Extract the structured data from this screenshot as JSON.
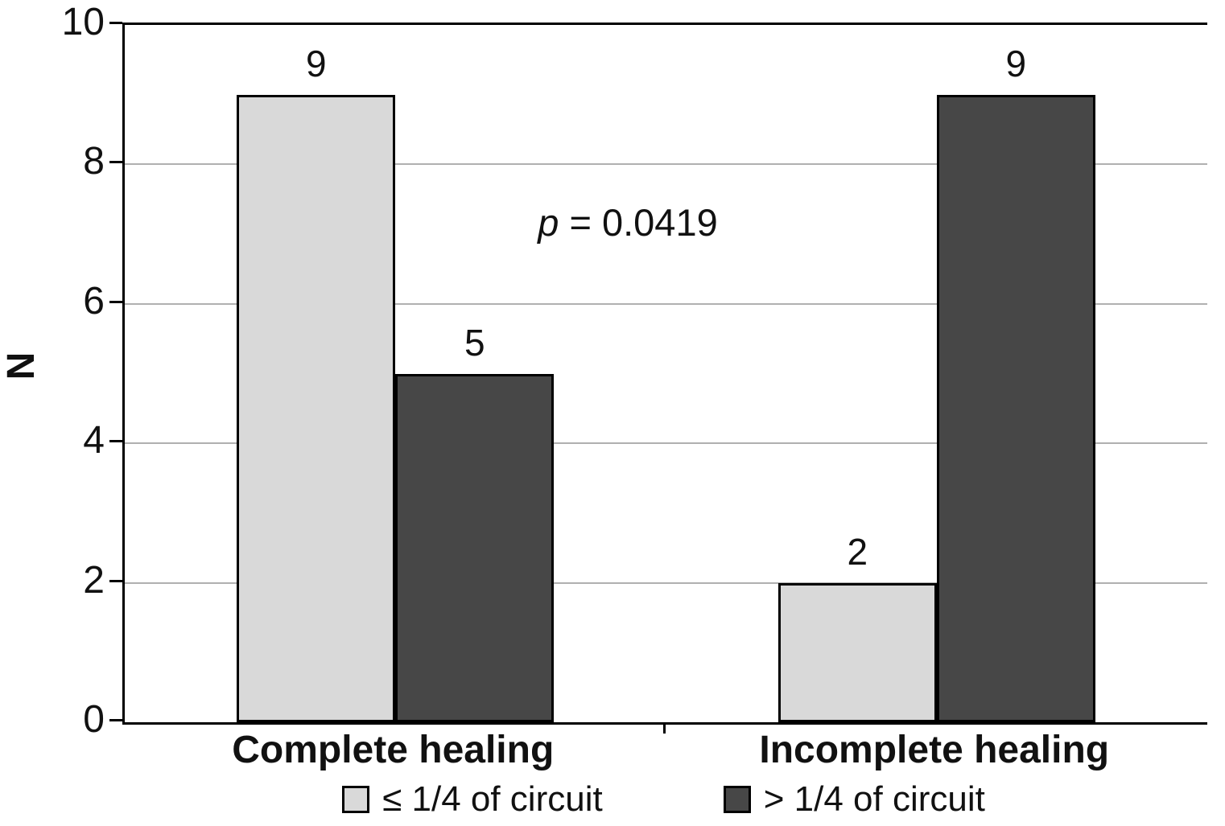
{
  "chart_data": {
    "type": "bar",
    "categories": [
      "Complete healing",
      "Incomplete healing"
    ],
    "series": [
      {
        "name": "≤ 1/4 of circuit",
        "color": "#d9d9d9",
        "values": [
          9,
          2
        ]
      },
      {
        "name": "> 1/4 of circuit",
        "color": "#474747",
        "values": [
          5,
          9
        ]
      }
    ],
    "title": "",
    "xlabel": "",
    "ylabel": "N",
    "ylim": [
      0,
      10
    ],
    "yticks": [
      0,
      2,
      4,
      6,
      8,
      10
    ],
    "grid": true,
    "legend_position": "bottom",
    "annotation": {
      "prefix": "p",
      "text": " = 0.0419"
    },
    "colors": {
      "axis": "#000000",
      "gridline": "#b0b0b0",
      "background": "#ffffff",
      "text": "#111111"
    }
  }
}
